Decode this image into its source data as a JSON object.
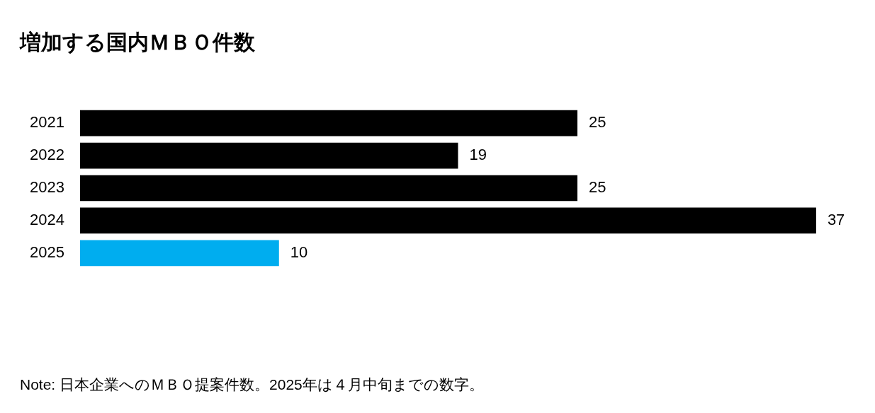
{
  "chart_data": {
    "type": "bar",
    "orientation": "horizontal",
    "title": "増加する国内ＭＢＯ件数",
    "categories": [
      "2021",
      "2022",
      "2023",
      "2024",
      "2025"
    ],
    "values": [
      25,
      19,
      25,
      37,
      10
    ],
    "colors": [
      "#000000",
      "#000000",
      "#000000",
      "#000000",
      "#00adef"
    ],
    "data_labels": true,
    "legend": false,
    "annotations": [
      "Note: 日本企業へのＭＢＯ提案件数。2025年は４月中旬までの数字。"
    ]
  }
}
